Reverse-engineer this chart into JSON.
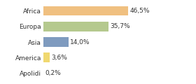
{
  "categories": [
    "Africa",
    "Europa",
    "Asia",
    "America",
    "Apolidi"
  ],
  "values": [
    46.5,
    35.7,
    14.0,
    3.6,
    0.2
  ],
  "labels": [
    "46,5%",
    "35,7%",
    "14,0%",
    "3,6%",
    "0,2%"
  ],
  "bar_colors": [
    "#f0c080",
    "#b5c98e",
    "#7f9bbf",
    "#f0d870",
    "#e8e8e8"
  ],
  "background_color": "#ffffff",
  "xlim": [
    0,
    60
  ],
  "label_fontsize": 6.5,
  "tick_fontsize": 6.5
}
